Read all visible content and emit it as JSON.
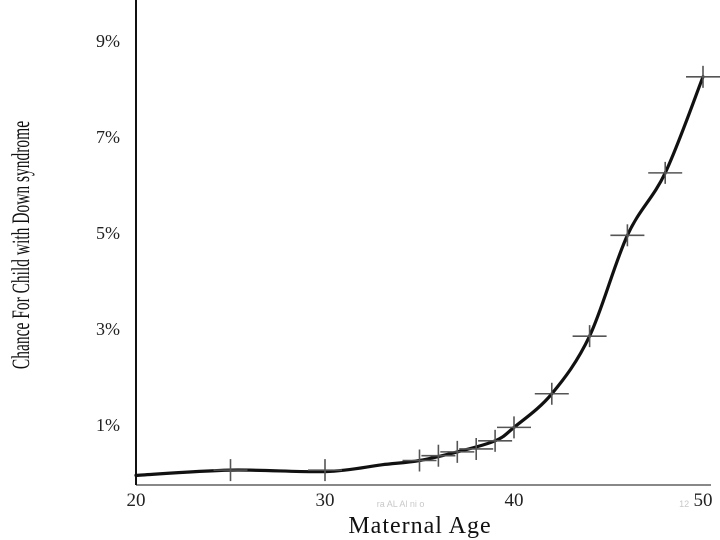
{
  "chart_data": {
    "type": "line",
    "title": "",
    "xlabel": "Maternal Age",
    "ylabel": "Chance For Child with Down syndrome",
    "xlim": [
      20,
      50
    ],
    "ylim": [
      -0.25,
      9.85
    ],
    "x_ticks": [
      20,
      30,
      40,
      50
    ],
    "y_ticks": [
      1,
      3,
      5,
      7,
      9
    ],
    "y_tick_labels": [
      "1%",
      "3%",
      "5%",
      "7%",
      "9%"
    ],
    "grid": false,
    "legend": "none",
    "series": [
      {
        "points": [
          {
            "x": 25,
            "y": 0.06
          },
          {
            "x": 30,
            "y": 0.06
          },
          {
            "x": 35,
            "y": 0.26
          },
          {
            "x": 36,
            "y": 0.36
          },
          {
            "x": 37,
            "y": 0.44
          },
          {
            "x": 38,
            "y": 0.5
          },
          {
            "x": 39,
            "y": 0.67
          },
          {
            "x": 40,
            "y": 0.95
          },
          {
            "x": 42,
            "y": 1.65
          },
          {
            "x": 44,
            "y": 2.85
          },
          {
            "x": 46,
            "y": 4.95
          },
          {
            "x": 48,
            "y": 6.25
          },
          {
            "x": 50,
            "y": 8.25
          }
        ],
        "curve": [
          {
            "x": 20,
            "y": -0.05
          },
          {
            "x": 25,
            "y": 0.06
          },
          {
            "x": 30,
            "y": 0.03
          },
          {
            "x": 33,
            "y": 0.17
          },
          {
            "x": 35,
            "y": 0.26
          },
          {
            "x": 37,
            "y": 0.44
          },
          {
            "x": 39,
            "y": 0.67
          },
          {
            "x": 40,
            "y": 0.95
          },
          {
            "x": 42,
            "y": 1.65
          },
          {
            "x": 44,
            "y": 2.85
          },
          {
            "x": 46,
            "y": 4.95
          },
          {
            "x": 48,
            "y": 6.25
          },
          {
            "x": 50,
            "y": 8.25
          }
        ]
      }
    ],
    "line_color": "#111111",
    "marker_color": "#555555",
    "marker": "cross",
    "faint_text": [
      {
        "text": "ra  AL  Al  ni  o",
        "near_x": 34
      },
      {
        "text": "12",
        "near_x": 49
      }
    ]
  }
}
